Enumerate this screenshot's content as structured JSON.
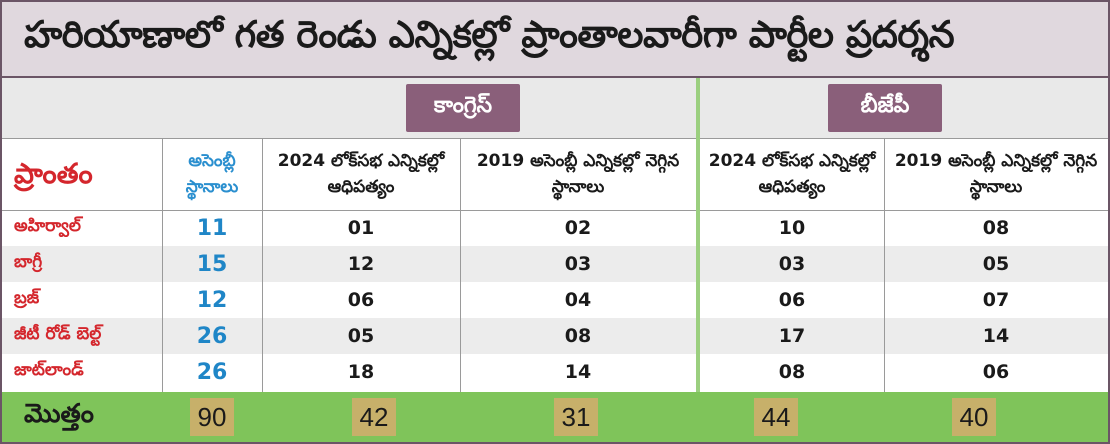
{
  "title": "హరియాణాలో గత రెండు ఎన్నికల్లో ప్రాంతాలవారీగా పార్టీల ప్రదర్శన",
  "parties": {
    "congress": "కాంగ్రెస్",
    "bjp": "బీజేపీ"
  },
  "headers": {
    "region": "ప్రాంతం",
    "seats": "అసెంబ్లీ స్థానాలు",
    "loksabha_2024": "2024 లోక్‌సభ ఎన్నికల్లో ఆధిపత్యం",
    "assembly_2019": "2019 అసెంబ్లీ ఎన్నికల్లో నెగ్గిన స్థానాలు"
  },
  "rows": [
    {
      "region": "అహిర్వాల్",
      "seats": "11",
      "c_2024": "01",
      "c_2019": "02",
      "b_2024": "10",
      "b_2019": "08"
    },
    {
      "region": "బాగ్రీ",
      "seats": "15",
      "c_2024": "12",
      "c_2019": "03",
      "b_2024": "03",
      "b_2019": "05"
    },
    {
      "region": "బ్రజ్",
      "seats": "12",
      "c_2024": "06",
      "c_2019": "04",
      "b_2024": "06",
      "b_2019": "07"
    },
    {
      "region": "జీటీ రోడ్ బెల్ట్",
      "seats": "26",
      "c_2024": "05",
      "c_2019": "08",
      "b_2024": "17",
      "b_2019": "14"
    },
    {
      "region": "జాట్‌లాండ్",
      "seats": "26",
      "c_2024": "18",
      "c_2019": "14",
      "b_2024": "08",
      "b_2019": "06"
    }
  ],
  "total": {
    "label": "మొత్తం",
    "seats": "90",
    "c_2024": "42",
    "c_2019": "31",
    "b_2024": "44",
    "b_2019": "40"
  },
  "colors": {
    "party_pill": "#8a5f7a",
    "region_text": "#d4262c",
    "seats_text": "#1f86c7",
    "total_band": "#7fc45a",
    "total_highlight": "#c7b06a"
  }
}
